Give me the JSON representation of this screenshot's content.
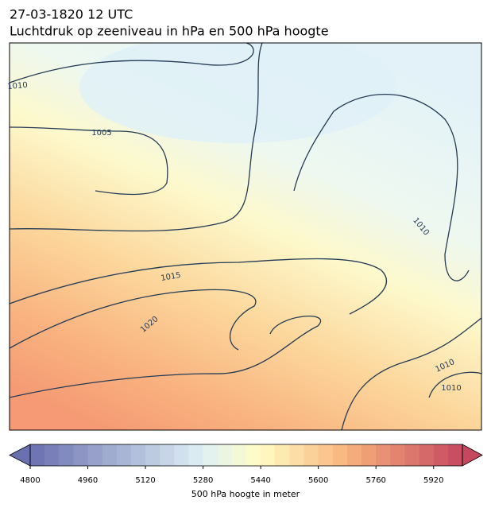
{
  "header": {
    "title": "27-03-1820 12 UTC",
    "subtitle": "Luchtdruk op zeeniveau in hPa en 500 hPa hoogte"
  },
  "map": {
    "contour_labels": [
      1010,
      1005,
      1010,
      1015,
      1020,
      1010,
      1010
    ]
  },
  "colorbar": {
    "label": "500 hPa hoogte in meter",
    "lim": [
      4800,
      6000
    ],
    "ticks": [
      4800,
      4960,
      5120,
      5280,
      5440,
      5600,
      5760,
      5920
    ]
  }
}
